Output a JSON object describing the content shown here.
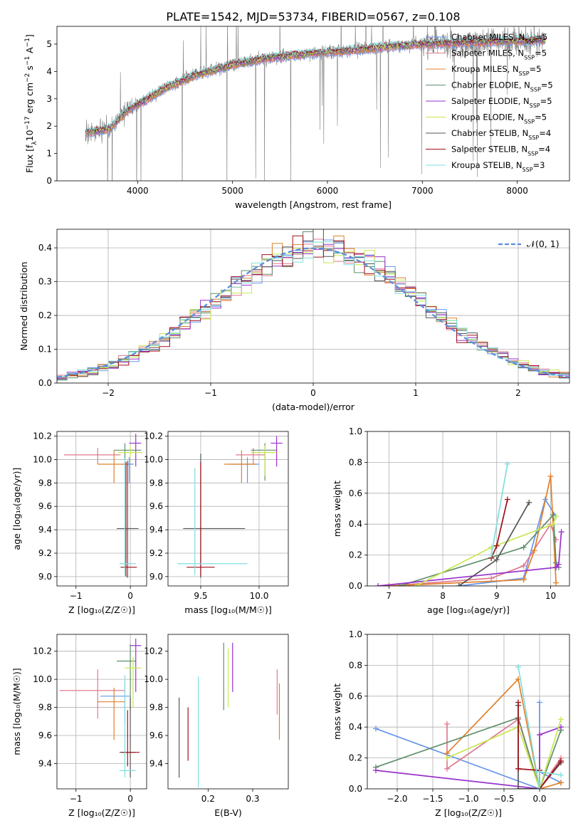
{
  "figure": {
    "title": "PLATE=1542, MJD=53734, FIBERID=0567, z=0.108"
  },
  "legend_top": [
    {
      "text": "Chabrier MILES, N",
      "sub": "SSP",
      "tail": "=5",
      "color": "#6495ED"
    },
    {
      "text": "Salpeter MILES, N",
      "sub": "SSP",
      "tail": "=5",
      "color": "#E07A8F"
    },
    {
      "text": "Kroupa MILES, N",
      "sub": "SSP",
      "tail": "=5",
      "color": "#E0802A"
    },
    {
      "text": "Chabrier ELODIE, N",
      "sub": "SSP",
      "tail": "=5",
      "color": "#5F8F6A"
    },
    {
      "text": "Salpeter ELODIE, N",
      "sub": "SSP",
      "tail": "=5",
      "color": "#9932CC"
    },
    {
      "text": "Kroupa ELODIE, N",
      "sub": "SSP",
      "tail": "=5",
      "color": "#C8E850"
    },
    {
      "text": "Chabrier STELIB, N",
      "sub": "SSP",
      "tail": "=4",
      "color": "#555555"
    },
    {
      "text": "Salpeter STELIB, N",
      "sub": "SSP",
      "tail": "=4",
      "color": "#A0101A"
    },
    {
      "text": "Kroupa STELIB, N",
      "sub": "SSP",
      "tail": "=3",
      "color": "#80DEDE"
    }
  ],
  "legend_hist": {
    "label": "𝒩(0, 1)",
    "color": "#5B8DD9"
  },
  "chart_data": [
    {
      "id": "spectrum",
      "type": "line",
      "xlabel": "wavelength [Angstrom, rest frame]",
      "ylabel_parts": [
        "Flux [f",
        "λ",
        "10",
        "−17",
        " erg cm",
        "−2",
        " s",
        "−1",
        " A",
        "−1",
        "]"
      ],
      "xlim": [
        3150,
        8550
      ],
      "ylim": [
        0,
        5.65
      ],
      "xticks": [
        4000,
        5000,
        6000,
        7000,
        8000
      ],
      "yticks": [
        0,
        1,
        2,
        3,
        4,
        5
      ],
      "grid": false,
      "data_color": "#808080",
      "data_range": [
        3450,
        8300
      ],
      "model_knots": {
        "x": [
          3450,
          3700,
          3900,
          4100,
          4300,
          4600,
          5000,
          5400,
          5800,
          6200,
          6600,
          7000,
          7400,
          7800,
          8300
        ],
        "y": [
          1.75,
          1.9,
          2.6,
          3.0,
          3.4,
          3.85,
          4.25,
          4.5,
          4.65,
          4.75,
          4.9,
          5.0,
          5.05,
          5.1,
          5.15
        ]
      }
    },
    {
      "id": "residuals",
      "type": "histogram",
      "xlabel": "(data-model)/error",
      "ylabel": "Normed distribution",
      "xlim": [
        -2.5,
        2.5
      ],
      "ylim": [
        0,
        0.455
      ],
      "xticks": [
        -2,
        -1,
        0,
        1,
        2
      ],
      "yticks": [
        0,
        0.1,
        0.2,
        0.3,
        0.4
      ],
      "grid": true,
      "bin_width": 0.1
    },
    {
      "id": "age_vs_Z",
      "type": "errorbar",
      "xlabel": "Z [log₁₀(Z/Z☉)]",
      "ylabel": "age  [log₁₀(age/yr)]",
      "xlim": [
        -1.35,
        0.3
      ],
      "ylim": [
        8.92,
        10.24
      ],
      "xticks": [
        -1,
        0
      ],
      "yticks": [
        9.0,
        9.2,
        9.4,
        9.6,
        9.8,
        10.0,
        10.2
      ],
      "grid": true,
      "points": [
        {
          "x": -0.02,
          "y": 9.96,
          "xerr": [
            0.14,
            0.08
          ],
          "yerr": [
            0.16,
            0.06
          ],
          "color": "#6495ED"
        },
        {
          "x": -0.6,
          "y": 10.04,
          "xerr": [
            0.62,
            0.42
          ],
          "yerr": [
            0.08,
            0.06
          ],
          "color": "#E07A8F"
        },
        {
          "x": -0.3,
          "y": 9.96,
          "xerr": [
            0.3,
            0.25
          ],
          "yerr": [
            0.16,
            0.12
          ],
          "color": "#E0802A"
        },
        {
          "x": -0.1,
          "y": 10.08,
          "xerr": [
            0.2,
            0.3
          ],
          "yerr": [
            0.1,
            0.06
          ],
          "color": "#5F8F6A"
        },
        {
          "x": 0.1,
          "y": 10.14,
          "xerr": [
            0.12,
            0.1
          ],
          "yerr": [
            0.2,
            0.08
          ],
          "color": "#9932CC"
        },
        {
          "x": 0.0,
          "y": 10.06,
          "xerr": [
            0.22,
            0.22
          ],
          "yerr": [
            0.04,
            0.06
          ],
          "color": "#C8E850"
        },
        {
          "x": -0.05,
          "y": 9.41,
          "xerr": [
            0.2,
            0.2
          ],
          "yerr": [
            0.42,
            0.58
          ],
          "color": "#555555"
        },
        {
          "x": -0.08,
          "y": 9.08,
          "xerr": [
            0.1,
            0.2
          ],
          "yerr": [
            0.08,
            0.9
          ],
          "color": "#A0101A"
        },
        {
          "x": -0.1,
          "y": 9.11,
          "xerr": [
            0.1,
            0.2
          ],
          "yerr": [
            0.1,
            0.9
          ],
          "color": "#80DEDE"
        }
      ]
    },
    {
      "id": "age_vs_mass",
      "type": "errorbar",
      "xlabel": "mass [log₁₀(M/M☉)]",
      "ylabel": "",
      "xlim": [
        9.22,
        10.25
      ],
      "ylim": [
        8.92,
        10.24
      ],
      "xticks": [
        9.5,
        10.0
      ],
      "yticks": [
        9.0,
        9.2,
        9.4,
        9.6,
        9.8,
        10.0,
        10.2
      ],
      "grid": true,
      "points": [
        {
          "x": 9.9,
          "y": 9.96,
          "xerr": [
            0.15,
            0.1
          ],
          "yerr": [
            0.16,
            0.06
          ],
          "color": "#6495ED"
        },
        {
          "x": 9.95,
          "y": 10.04,
          "xerr": [
            0.15,
            0.1
          ],
          "yerr": [
            0.08,
            0.06
          ],
          "color": "#E07A8F"
        },
        {
          "x": 9.85,
          "y": 9.96,
          "xerr": [
            0.15,
            0.12
          ],
          "yerr": [
            0.16,
            0.12
          ],
          "color": "#E0802A"
        },
        {
          "x": 10.05,
          "y": 10.08,
          "xerr": [
            0.12,
            0.1
          ],
          "yerr": [
            0.26,
            0.06
          ],
          "color": "#5F8F6A"
        },
        {
          "x": 10.15,
          "y": 10.14,
          "xerr": [
            0.05,
            0.05
          ],
          "yerr": [
            0.2,
            0.06
          ],
          "color": "#9932CC"
        },
        {
          "x": 10.05,
          "y": 10.06,
          "xerr": [
            0.12,
            0.1
          ],
          "yerr": [
            0.2,
            0.06
          ],
          "color": "#C8E850"
        },
        {
          "x": 9.5,
          "y": 9.41,
          "xerr": [
            0.15,
            0.38
          ],
          "yerr": [
            0.42,
            0.64
          ],
          "color": "#555555"
        },
        {
          "x": 9.5,
          "y": 9.08,
          "xerr": [
            0.12,
            0.12
          ],
          "yerr": [
            0.08,
            0.9
          ],
          "color": "#A0101A"
        },
        {
          "x": 9.45,
          "y": 9.11,
          "xerr": [
            0.15,
            0.45
          ],
          "yerr": [
            0.1,
            0.82
          ],
          "color": "#80DEDE"
        }
      ]
    },
    {
      "id": "weight_vs_age",
      "type": "line",
      "xlabel": "age  [log₁₀(age/yr)]",
      "ylabel": "mass weight",
      "xlim": [
        6.6,
        10.35
      ],
      "ylim": [
        0,
        1.0
      ],
      "xticks": [
        7,
        8,
        9,
        10
      ],
      "yticks": [
        0.0,
        0.2,
        0.4,
        0.6,
        0.8,
        1.0
      ],
      "grid": true,
      "series": [
        {
          "color": "#6495ED",
          "x": [
            8.3,
            9.5,
            9.9,
            10.1
          ],
          "y": [
            0.0,
            0.05,
            0.56,
            0.45
          ]
        },
        {
          "color": "#E07A8F",
          "x": [
            7.0,
            8.9,
            9.5,
            10.0,
            10.1
          ],
          "y": [
            0.0,
            0.05,
            0.13,
            0.4,
            0.3
          ]
        },
        {
          "color": "#E0802A",
          "x": [
            7.0,
            9.5,
            9.7,
            10.0,
            10.1
          ],
          "y": [
            0.0,
            0.04,
            0.23,
            0.71,
            0.02
          ]
        },
        {
          "color": "#5F8F6A",
          "x": [
            7.2,
            9.5,
            10.05,
            10.1,
            10.15
          ],
          "y": [
            0.0,
            0.25,
            0.46,
            0.15,
            0.12
          ]
        },
        {
          "color": "#9932CC",
          "x": [
            6.8,
            10.1,
            10.15,
            10.2
          ],
          "y": [
            0.0,
            0.12,
            0.14,
            0.35
          ]
        },
        {
          "color": "#C8E850",
          "x": [
            7.5,
            8.9,
            10.05,
            10.1
          ],
          "y": [
            0.0,
            0.25,
            0.4,
            0.45
          ]
        },
        {
          "color": "#555555",
          "x": [
            8.3,
            9.0,
            9.6
          ],
          "y": [
            0.0,
            0.17,
            0.54
          ]
        },
        {
          "color": "#A0101A",
          "x": [
            8.9,
            9.0,
            9.2
          ],
          "y": [
            0.18,
            0.26,
            0.56
          ]
        },
        {
          "color": "#80DEDE",
          "x": [
            8.9,
            9.2
          ],
          "y": [
            0.2,
            0.79
          ]
        }
      ]
    },
    {
      "id": "mass_vs_Z",
      "type": "errorbar",
      "xlabel": "Z [log₁₀(Z/Z☉)]",
      "ylabel": "mass [log₁₀(M/M☉)]",
      "xlim": [
        -1.35,
        0.3
      ],
      "ylim": [
        9.22,
        10.32
      ],
      "xticks": [
        -1,
        0
      ],
      "yticks": [
        9.4,
        9.6,
        9.8,
        10.0,
        10.2
      ],
      "grid": true,
      "points": [
        {
          "x": -0.1,
          "y": 9.88,
          "xerr": [
            0.45,
            0.1
          ],
          "yerr": [
            0.2,
            0.1
          ],
          "color": "#6495ED"
        },
        {
          "x": -0.6,
          "y": 9.92,
          "xerr": [
            0.7,
            0.5
          ],
          "yerr": [
            0.2,
            0.15
          ],
          "color": "#E07A8F"
        },
        {
          "x": -0.3,
          "y": 9.84,
          "xerr": [
            0.3,
            0.2
          ],
          "yerr": [
            0.27,
            0.1
          ],
          "color": "#E0802A"
        },
        {
          "x": 0.0,
          "y": 10.13,
          "xerr": [
            0.25,
            0.1
          ],
          "yerr": [
            0.35,
            0.12
          ],
          "color": "#5F8F6A"
        },
        {
          "x": 0.1,
          "y": 10.24,
          "xerr": [
            0.1,
            0.1
          ],
          "yerr": [
            0.33,
            0.05
          ],
          "color": "#9932CC"
        },
        {
          "x": 0.05,
          "y": 10.08,
          "xerr": [
            0.15,
            0.15
          ],
          "yerr": [
            0.28,
            0.08
          ],
          "color": "#C8E850"
        },
        {
          "x": 0.0,
          "y": 9.48,
          "xerr": [
            0.2,
            0.1
          ],
          "yerr": [
            0.18,
            0.39
          ],
          "color": "#555555"
        },
        {
          "x": -0.05,
          "y": 9.48,
          "xerr": [
            0.12,
            0.22
          ],
          "yerr": [
            0.1,
            0.3
          ],
          "color": "#A0101A"
        },
        {
          "x": -0.1,
          "y": 9.35,
          "xerr": [
            0.1,
            0.2
          ],
          "yerr": [
            0.05,
            0.68
          ],
          "color": "#80DEDE"
        }
      ]
    },
    {
      "id": "mass_vs_EBV",
      "type": "errorbar",
      "xlabel": "E(B-V)",
      "ylabel": "",
      "xlim": [
        0.11,
        0.38
      ],
      "ylim": [
        9.22,
        10.32
      ],
      "xticks": [
        0.2,
        0.3
      ],
      "yticks": [
        9.4,
        9.6,
        9.8,
        10.0,
        10.2
      ],
      "grid": false,
      "points": [
        {
          "x": 0.36,
          "y": 9.78,
          "xerr": [
            0,
            0
          ],
          "yerr": [
            0.21,
            0.19
          ],
          "color": "#E0802A"
        },
        {
          "x": 0.355,
          "y": 9.85,
          "xerr": [
            0,
            0
          ],
          "yerr": [
            0.1,
            0.22
          ],
          "color": "#E07A8F"
        },
        {
          "x": 0.235,
          "y": 10.02,
          "xerr": [
            0,
            0
          ],
          "yerr": [
            0.24,
            0.24
          ],
          "color": "#5F8F6A"
        },
        {
          "x": 0.255,
          "y": 10.09,
          "xerr": [
            0,
            0
          ],
          "yerr": [
            0.18,
            0.17
          ],
          "color": "#9932CC"
        },
        {
          "x": 0.245,
          "y": 10.01,
          "xerr": [
            0,
            0
          ],
          "yerr": [
            0.21,
            0.21
          ],
          "color": "#C8E850"
        },
        {
          "x": 0.135,
          "y": 9.58,
          "xerr": [
            0,
            0
          ],
          "yerr": [
            0.28,
            0.29
          ],
          "color": "#555555"
        },
        {
          "x": 0.155,
          "y": 9.6,
          "xerr": [
            0,
            0
          ],
          "yerr": [
            0.18,
            0.2
          ],
          "color": "#A0101A"
        },
        {
          "x": 0.178,
          "y": 9.63,
          "xerr": [
            0,
            0
          ],
          "yerr": [
            0.4,
            0.39
          ],
          "color": "#80DEDE"
        }
      ]
    },
    {
      "id": "weight_vs_Z",
      "type": "line",
      "xlabel": "Z [log₁₀(Z/Z☉)]",
      "ylabel": "mass weight",
      "xlim": [
        -2.42,
        0.42
      ],
      "ylim": [
        0,
        1.0
      ],
      "xticks": [
        -2.0,
        -1.5,
        -1.0,
        -0.5,
        0.0
      ],
      "yticks": [
        0.0,
        0.2,
        0.4,
        0.6,
        0.8,
        1.0
      ],
      "grid": true,
      "series": [
        {
          "color": "#6495ED",
          "x": [
            -2.3,
            0.0,
            0.0,
            0.0,
            0.3
          ],
          "y": [
            0.39,
            0.0,
            0.56,
            0.11,
            0.04
          ]
        },
        {
          "color": "#E07A8F",
          "x": [
            -1.3,
            -1.3,
            -0.3,
            0.0,
            0.3
          ],
          "y": [
            0.42,
            0.13,
            0.45,
            0.0,
            0.2
          ]
        },
        {
          "color": "#E0802A",
          "x": [
            -1.3,
            -0.3,
            0.0,
            0.3
          ],
          "y": [
            0.23,
            0.71,
            0.0,
            0.04
          ]
        },
        {
          "color": "#5F8F6A",
          "x": [
            -2.3,
            -0.3,
            0.0,
            0.3
          ],
          "y": [
            0.14,
            0.46,
            0.0,
            0.38
          ]
        },
        {
          "color": "#9932CC",
          "x": [
            -2.3,
            0.0,
            0.0,
            0.3
          ],
          "y": [
            0.12,
            0.0,
            0.35,
            0.4
          ]
        },
        {
          "color": "#C8E850",
          "x": [
            -1.3,
            -0.3,
            0.0,
            0.3
          ],
          "y": [
            0.2,
            0.4,
            0.0,
            0.45
          ]
        },
        {
          "color": "#555555",
          "x": [
            -0.3,
            -0.3,
            0.0,
            0.3
          ],
          "y": [
            0.54,
            0.0,
            0.0,
            0.17
          ]
        },
        {
          "color": "#A0101A",
          "x": [
            -0.3,
            -0.3,
            0.0,
            0.0,
            0.3
          ],
          "y": [
            0.56,
            0.13,
            0.12,
            0.0,
            0.18
          ]
        },
        {
          "color": "#80DEDE",
          "x": [
            -0.3,
            0.0,
            0.0,
            0.3
          ],
          "y": [
            0.79,
            0.0,
            0.11,
            0.09
          ]
        }
      ]
    }
  ]
}
